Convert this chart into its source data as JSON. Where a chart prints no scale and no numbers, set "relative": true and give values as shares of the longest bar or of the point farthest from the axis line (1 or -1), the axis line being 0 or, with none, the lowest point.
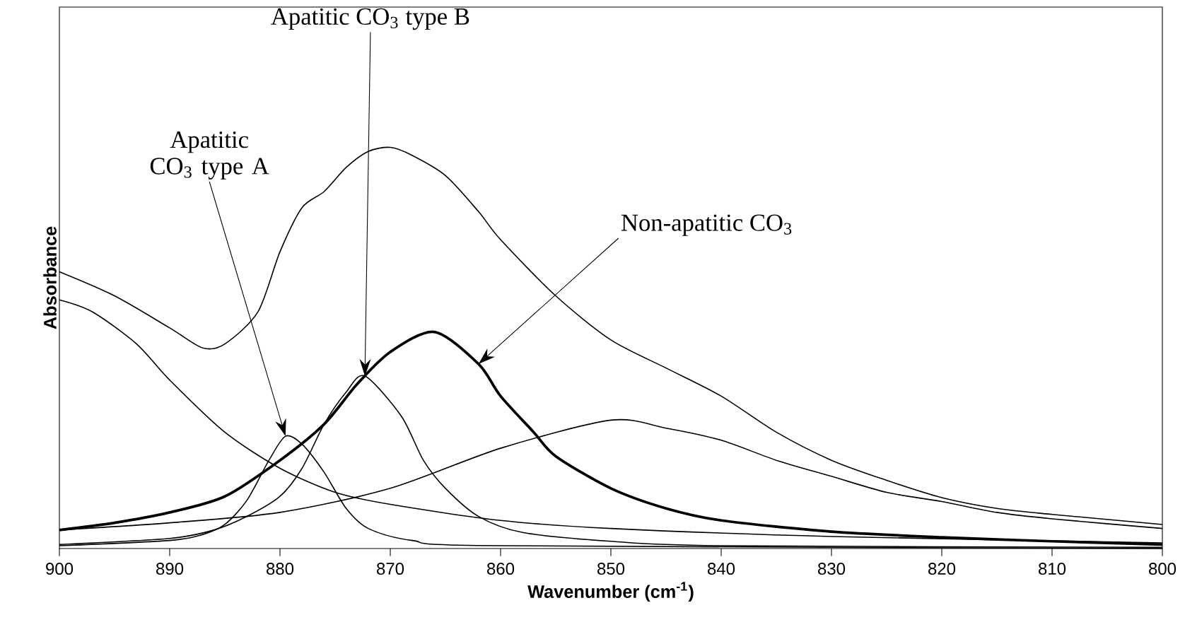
{
  "chart_data": {
    "type": "line",
    "relative": true,
    "xlabel": "Wavenumber (cm$^{-1}$)",
    "ylabel": "Absorbance",
    "xlim": [
      900,
      800
    ],
    "xticks": [
      900,
      890,
      880,
      870,
      860,
      850,
      840,
      830,
      820,
      810,
      800
    ],
    "tick_labels": "x",
    "grid": false,
    "marker": "none",
    "line_style": "solid",
    "series": [
      {
        "color": "#000000",
        "x": [
          900,
          895,
          890,
          887,
          885,
          882,
          880,
          878,
          876,
          874,
          872,
          870,
          868,
          865,
          862,
          860,
          855,
          850,
          845,
          840,
          835,
          830,
          825,
          820,
          815,
          810,
          800
        ],
        "values": [
          0.69,
          0.63,
          0.55,
          0.5,
          0.51,
          0.59,
          0.74,
          0.85,
          0.89,
          0.95,
          0.99,
          1.0,
          0.98,
          0.93,
          0.84,
          0.77,
          0.63,
          0.52,
          0.45,
          0.38,
          0.29,
          0.22,
          0.17,
          0.127,
          0.1,
          0.085,
          0.06
        ]
      },
      {
        "color": "#000000",
        "x": [
          900,
          897,
          893,
          890,
          885,
          880,
          875,
          870,
          860,
          850,
          830,
          800
        ],
        "values": [
          0.62,
          0.59,
          0.51,
          0.42,
          0.29,
          0.2,
          0.14,
          0.11,
          0.07,
          0.05,
          0.03,
          0.014
        ]
      },
      {
        "color": "#000000",
        "x": [
          900,
          890,
          887,
          885,
          883,
          881,
          879.5,
          878,
          876,
          874,
          872,
          868,
          860,
          800
        ],
        "values": [
          0.007,
          0.02,
          0.035,
          0.06,
          0.12,
          0.22,
          0.28,
          0.26,
          0.19,
          0.1,
          0.05,
          0.02,
          0.007,
          0.0
        ]
      },
      {
        "color": "#000000",
        "x": [
          900,
          890,
          886,
          883,
          880,
          878,
          876,
          874,
          872.3,
          869,
          867,
          865,
          862,
          858,
          850,
          840,
          800
        ],
        "values": [
          0.01,
          0.025,
          0.046,
          0.08,
          0.13,
          0.2,
          0.31,
          0.39,
          0.43,
          0.33,
          0.22,
          0.15,
          0.08,
          0.04,
          0.018,
          0.007,
          0.003
        ]
      },
      {
        "color": "#000000",
        "x": [
          900,
          895,
          890,
          885,
          880,
          876,
          873,
          870,
          866,
          862,
          860,
          857,
          855,
          850,
          845,
          840,
          830,
          820,
          810,
          800
        ],
        "values": [
          0.046,
          0.064,
          0.09,
          0.13,
          0.22,
          0.31,
          0.41,
          0.49,
          0.54,
          0.46,
          0.38,
          0.29,
          0.23,
          0.15,
          0.1,
          0.07,
          0.042,
          0.028,
          0.018,
          0.01
        ]
      },
      {
        "color": "#000000",
        "x": [
          900,
          890,
          880,
          870,
          860,
          850,
          845,
          840,
          835,
          830,
          825,
          820,
          815,
          810,
          800
        ],
        "values": [
          0.046,
          0.064,
          0.09,
          0.15,
          0.25,
          0.32,
          0.3,
          0.27,
          0.22,
          0.18,
          0.14,
          0.117,
          0.09,
          0.074,
          0.05
        ]
      }
    ],
    "annotations": [
      {
        "text": "Apatitic CO$_{3}$ type A",
        "x": 879.5,
        "y": 0.28
      },
      {
        "text": "Apatitic CO$_{3}$ type B",
        "x": 872.3,
        "y": 0.43
      },
      {
        "text": "Non-apatitic CO$_{3}$",
        "x": 862,
        "y": 0.46
      }
    ]
  }
}
